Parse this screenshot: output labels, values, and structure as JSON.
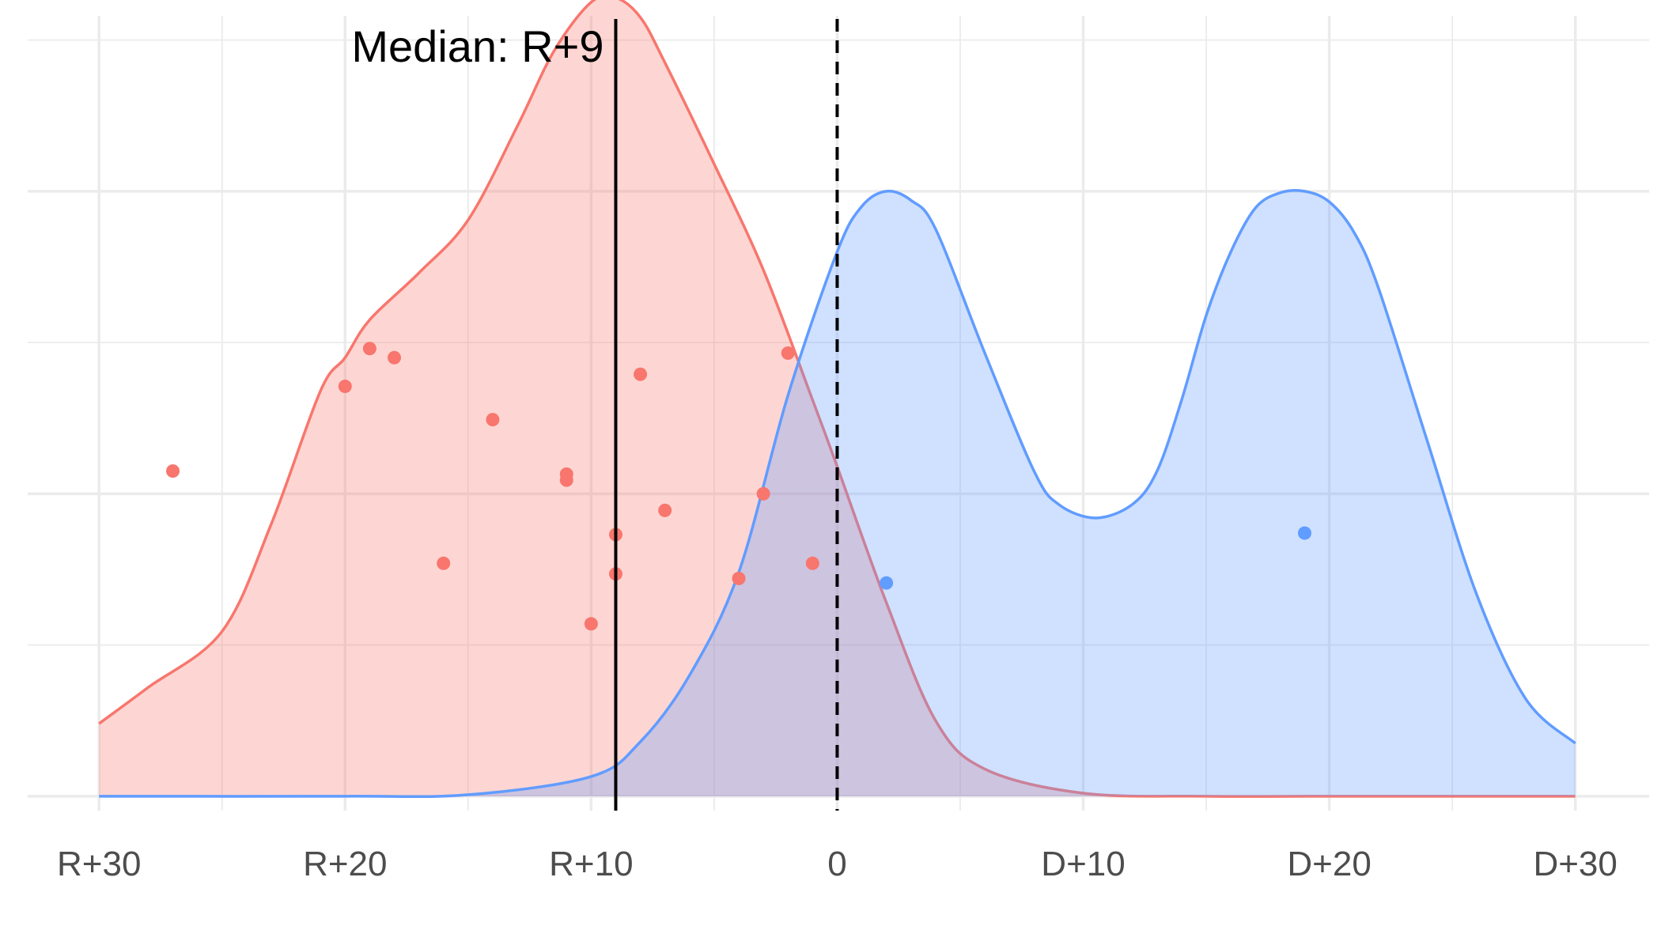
{
  "chart_data": {
    "type": "area",
    "x_ticks": [
      {
        "value": -30,
        "label": "R+30"
      },
      {
        "value": -20,
        "label": "R+20"
      },
      {
        "value": -10,
        "label": "R+10"
      },
      {
        "value": 0,
        "label": "0"
      },
      {
        "value": 10,
        "label": "D+10"
      },
      {
        "value": 20,
        "label": "D+20"
      },
      {
        "value": 30,
        "label": "D+30"
      }
    ],
    "xlim": [
      -32.9,
      33
    ],
    "ylim": [
      -0.00095,
      0.0516
    ],
    "grid": true,
    "legend": "none",
    "series": [
      {
        "color": "#F8766D",
        "fill": "#F8766D",
        "density": {
          "x": [
            -30,
            -28,
            -25,
            -23,
            -21,
            -20,
            -19,
            -17,
            -15,
            -13,
            -11.5,
            -10,
            -9,
            -8,
            -7,
            -5,
            -3,
            -1,
            0,
            2,
            4,
            6,
            10,
            15,
            20,
            25,
            30
          ],
          "y": [
            0.0048,
            0.0072,
            0.0109,
            0.018,
            0.0268,
            0.029,
            0.0315,
            0.0346,
            0.0381,
            0.0443,
            0.0493,
            0.0525,
            0.0528,
            0.0515,
            0.0485,
            0.0418,
            0.0348,
            0.0262,
            0.0218,
            0.0128,
            0.005,
            0.0018,
            0.0002,
            0.0,
            0.0,
            0.0,
            0.0
          ]
        },
        "points": [
          {
            "x": -27,
            "y": 0.0215
          },
          {
            "x": -20,
            "y": 0.0271
          },
          {
            "x": -19,
            "y": 0.0296
          },
          {
            "x": -18,
            "y": 0.029
          },
          {
            "x": -16,
            "y": 0.0154
          },
          {
            "x": -14,
            "y": 0.0249
          },
          {
            "x": -11,
            "y": 0.0213
          },
          {
            "x": -11,
            "y": 0.0209
          },
          {
            "x": -10,
            "y": 0.0114
          },
          {
            "x": -9,
            "y": 0.0173
          },
          {
            "x": -9,
            "y": 0.0147
          },
          {
            "x": -8,
            "y": 0.0279
          },
          {
            "x": -7,
            "y": 0.0189
          },
          {
            "x": -4,
            "y": 0.0144
          },
          {
            "x": -3,
            "y": 0.02
          },
          {
            "x": -2,
            "y": 0.0293
          },
          {
            "x": -1,
            "y": 0.0154
          }
        ]
      },
      {
        "color": "#619CFF",
        "fill": "#619CFF",
        "density": {
          "x": [
            -30,
            -20,
            -15,
            -10,
            -8,
            -6,
            -4,
            -2,
            0,
            1,
            2,
            3,
            4,
            6,
            8,
            9,
            10.5,
            12,
            13,
            14,
            15,
            16,
            17,
            18,
            19,
            20,
            21,
            22,
            24,
            26,
            28,
            30
          ],
          "y": [
            0.0,
            0.0,
            0.0001,
            0.0013,
            0.0036,
            0.008,
            0.0148,
            0.0265,
            0.036,
            0.039,
            0.04,
            0.0394,
            0.0375,
            0.0293,
            0.0215,
            0.0193,
            0.0184,
            0.0193,
            0.0215,
            0.0262,
            0.0318,
            0.036,
            0.0389,
            0.0399,
            0.04,
            0.0393,
            0.0373,
            0.0336,
            0.0234,
            0.0133,
            0.0064,
            0.0035
          ]
        },
        "points": [
          {
            "x": 2,
            "y": 0.0141
          },
          {
            "x": 19,
            "y": 0.0174
          }
        ]
      }
    ],
    "reference_lines": [
      {
        "x": -9,
        "style": "solid",
        "color": "#000000"
      },
      {
        "x": 0,
        "style": "dashed",
        "color": "#000000"
      }
    ],
    "annotations": [
      {
        "text": "Median: R+9",
        "x": -9,
        "y": 0.0495
      }
    ]
  }
}
